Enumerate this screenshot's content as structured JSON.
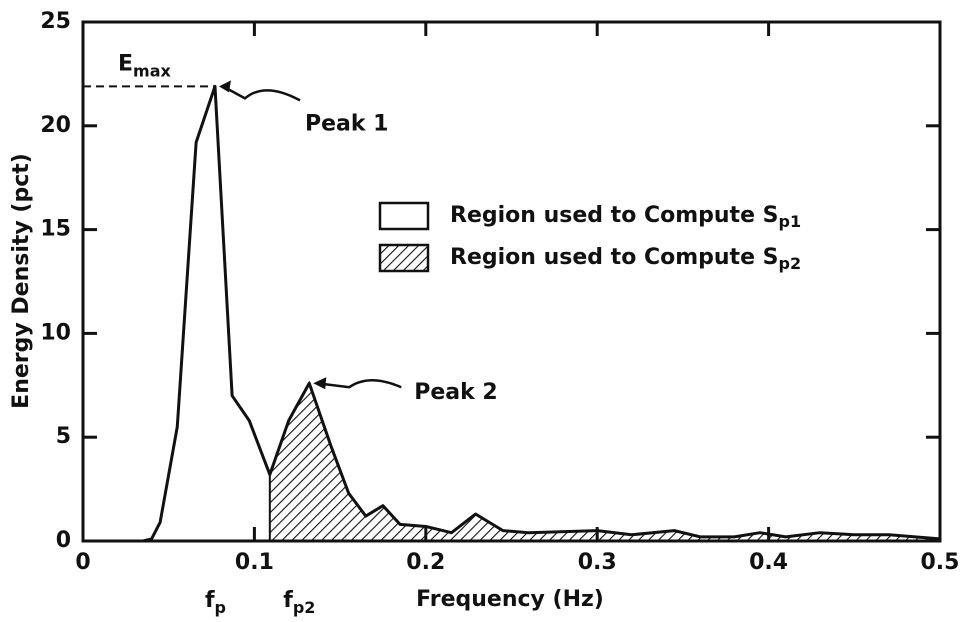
{
  "chart_data": {
    "type": "line",
    "x_label": "Frequency (Hz)",
    "y_label": "Energy Density (pct)",
    "x": [
      0,
      0.035,
      0.04,
      0.045,
      0.055,
      0.066,
      0.077,
      0.087,
      0.097,
      0.109,
      0.12,
      0.132,
      0.145,
      0.155,
      0.165,
      0.175,
      0.185,
      0.2,
      0.215,
      0.229,
      0.245,
      0.26,
      0.3,
      0.32,
      0.345,
      0.36,
      0.38,
      0.395,
      0.41,
      0.43,
      0.45,
      0.47,
      0.5
    ],
    "values": [
      0,
      0,
      0.1,
      0.9,
      5.5,
      19.2,
      21.9,
      7.0,
      5.8,
      3.2,
      5.8,
      7.6,
      4.5,
      2.3,
      1.2,
      1.7,
      0.8,
      0.7,
      0.4,
      1.3,
      0.5,
      0.4,
      0.5,
      0.3,
      0.5,
      0.2,
      0.2,
      0.4,
      0.2,
      0.4,
      0.3,
      0.3,
      0.1
    ],
    "color": "#111111",
    "shaded_from": 0.109,
    "xlim": [
      0,
      0.5
    ],
    "xticks": [
      0,
      0.1,
      0.2,
      0.3,
      0.4,
      0.5
    ],
    "ylim": [
      0,
      25
    ],
    "yticks": [
      0,
      5,
      10,
      15,
      20,
      25
    ],
    "legend": [
      {
        "text": "Region used to Compute S",
        "sub": "p1",
        "hatched": false
      },
      {
        "text": "Region used to Compute S",
        "sub": "p2",
        "hatched": true
      }
    ],
    "annotations": {
      "emax": {
        "text": "E",
        "sub": "max"
      },
      "peak1": "Peak 1",
      "peak2": "Peak 2",
      "fp": {
        "text": "f",
        "sub": "p"
      },
      "fp2": {
        "text": "f",
        "sub": "p2"
      }
    }
  }
}
